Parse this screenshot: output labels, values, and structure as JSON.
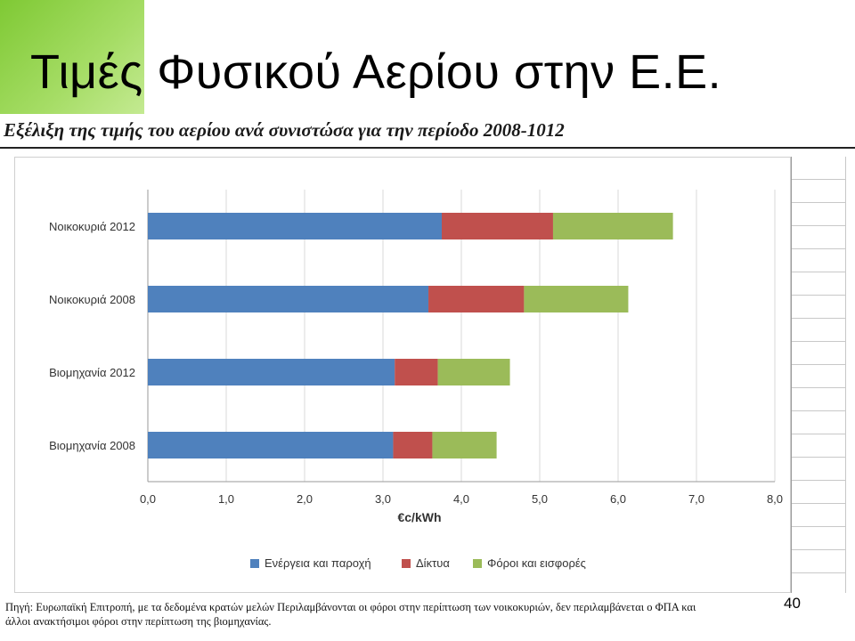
{
  "slide": {
    "title": "Τιμές Φυσικού Αερίου στην Ε.Ε.",
    "subtitle": "Εξέλιξη της τιμής του αερίου ανά συνιστώσα για την περίοδο 2008-1012",
    "source_line1": "Πηγή: Ευρωπαϊκή Επιτροπή, με τα δεδομένα κρατών μελών Περιλαμβάνονται οι φόροι στην περίπτωση των νοικοκυριών, δεν περιλαμβάνεται ο ΦΠΑ και",
    "source_line2": "άλλοι ανακτήσιμοι φόροι στην περίπτωση της βιομηχανίας.",
    "page_number": "40",
    "accent_color": "#8fd444"
  },
  "chart_data": {
    "type": "bar",
    "orientation": "horizontal",
    "stacked": true,
    "title": "Εξέλιξη της τιμής του αερίου ανά συνιστώσα για την περίοδο 2008-1012",
    "xlabel": "€c/kWh",
    "ylabel": "",
    "xlim": [
      0,
      8
    ],
    "x_ticks": [
      "0,0",
      "1,0",
      "2,0",
      "3,0",
      "4,0",
      "5,0",
      "6,0",
      "7,0",
      "8,0"
    ],
    "categories": [
      "Νοικοκυριά 2012",
      "Νοικοκυριά 2008",
      "Βιομηχανία 2012",
      "Βιομηχανία 2008"
    ],
    "series": [
      {
        "name": "Ενέργεια και παροχή",
        "color": "#4f81bd",
        "values": [
          3.75,
          3.58,
          3.15,
          3.13
        ]
      },
      {
        "name": "Δίκτυα",
        "color": "#c0504d",
        "values": [
          1.42,
          1.22,
          0.55,
          0.5
        ]
      },
      {
        "name": "Φόροι και εισφορές",
        "color": "#9bbb59",
        "values": [
          1.53,
          1.33,
          0.92,
          0.82
        ]
      }
    ],
    "grid": "vertical",
    "legend_position": "bottom"
  }
}
